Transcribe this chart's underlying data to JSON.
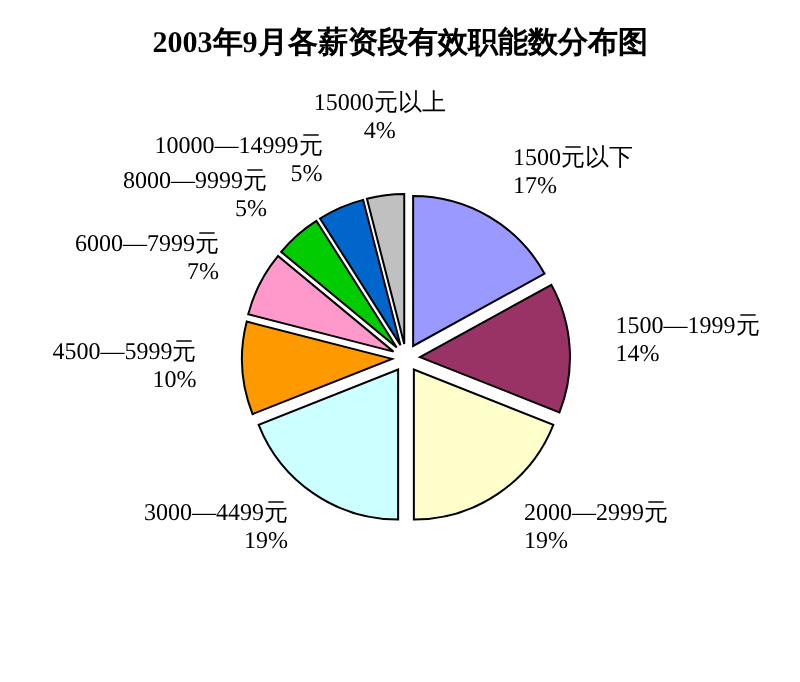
{
  "chart_data": {
    "type": "pie",
    "title": "2003年9月各薪资段有效职能数分布图",
    "categories": [
      "1500元以下",
      "1500—1999元",
      "2000—2999元",
      "3000—4499元",
      "4500—5999元",
      "6000—7999元",
      "8000—9999元",
      "10000—14999元",
      "15000元以上"
    ],
    "values": [
      17,
      14,
      19,
      19,
      10,
      7,
      5,
      5,
      4
    ],
    "value_labels": [
      "17%",
      "14%",
      "19%",
      "19%",
      "10%",
      "7%",
      "5%",
      "5%",
      "4%"
    ],
    "colors": [
      "#9999ff",
      "#993366",
      "#ffffcc",
      "#ccffff",
      "#ff9900",
      "#ff99cc",
      "#00cc00",
      "#0066cc",
      "#c0c0c0"
    ],
    "legend": false
  }
}
